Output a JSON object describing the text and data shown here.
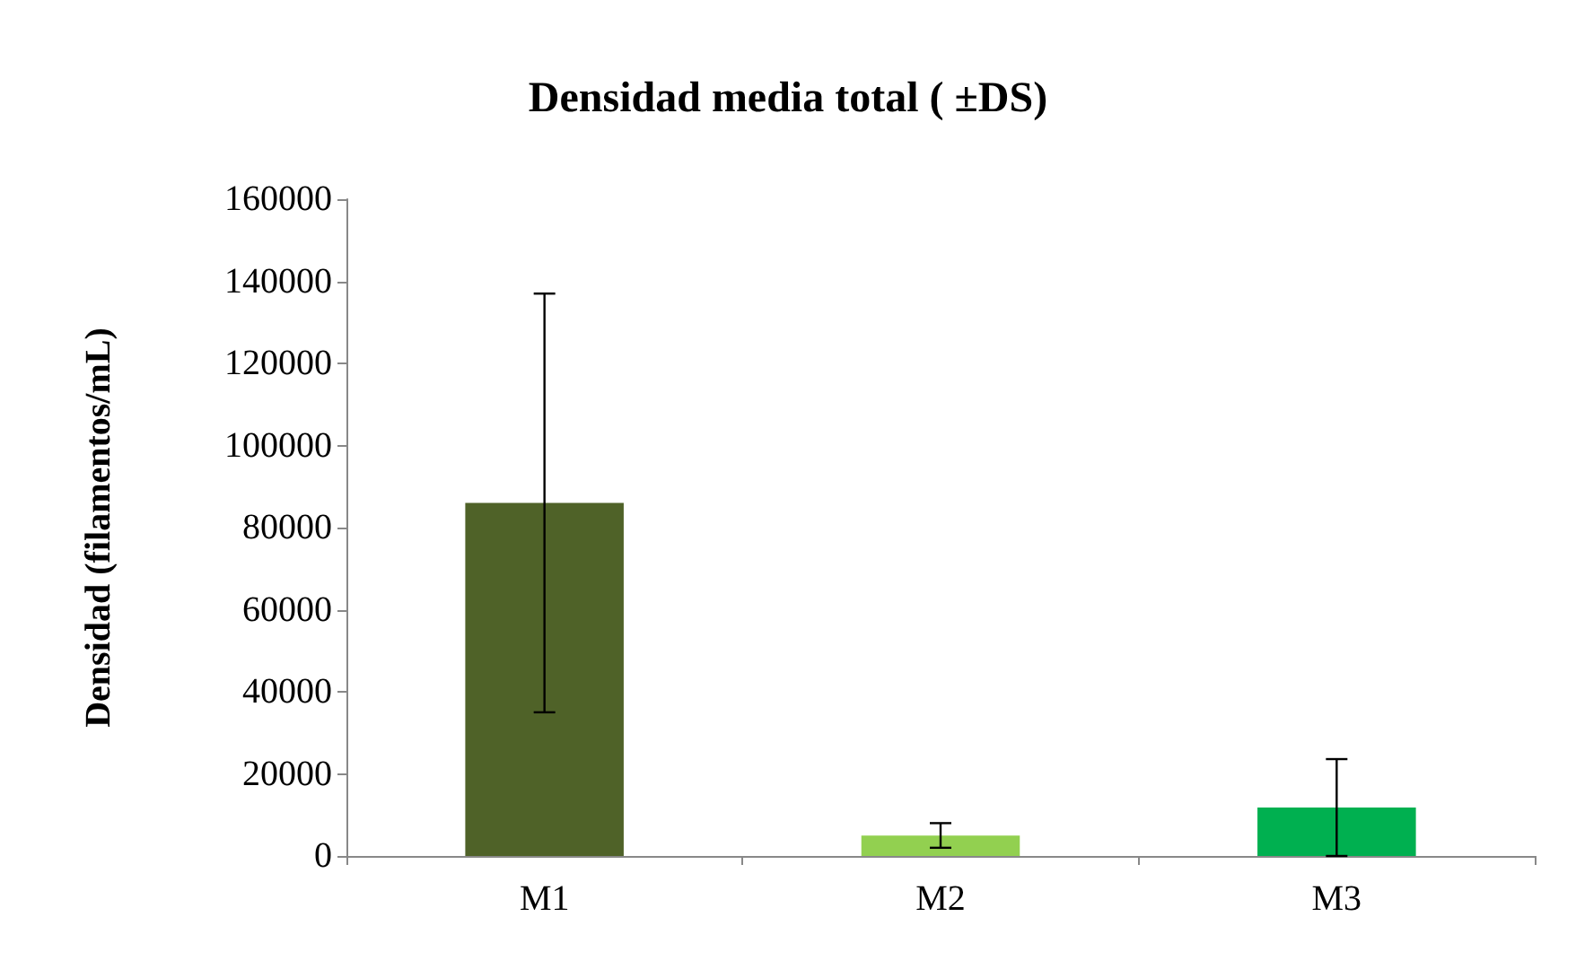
{
  "chart_data": {
    "type": "bar",
    "title": "Densidad media total ( ±DS)",
    "ylabel": "Densidad (filamentos/mL)",
    "categories": [
      "M1",
      "M2",
      "M3"
    ],
    "values": [
      86000,
      5000,
      11800
    ],
    "colors": [
      "#4f6228",
      "#92d050",
      "#00b050"
    ],
    "errors": [
      51000,
      3000,
      11800
    ],
    "ylim": [
      0,
      160000
    ],
    "yticks": [
      0,
      20000,
      40000,
      60000,
      80000,
      100000,
      120000,
      140000,
      160000
    ],
    "grid": false
  }
}
